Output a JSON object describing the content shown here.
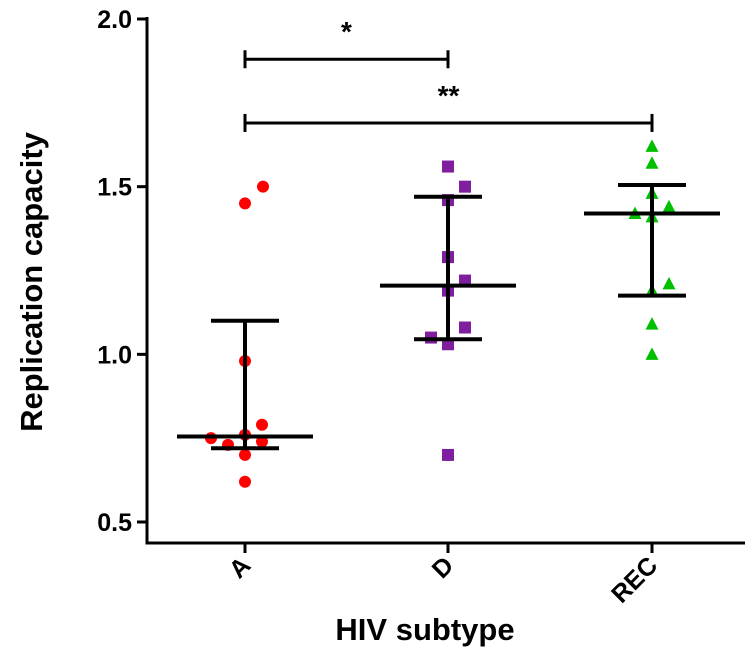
{
  "chart_data": {
    "type": "scatter",
    "xlabel": "HIV subtype",
    "ylabel": "Replication capacity",
    "ylim": [
      0.5,
      2.0
    ],
    "yticks": [
      "0.5",
      "1.0",
      "1.5",
      "2.0"
    ],
    "categories": [
      "A",
      "D",
      "REC"
    ],
    "grid": false,
    "series": [
      {
        "category": "A",
        "marker": "circle",
        "color": "#ff0000",
        "values": [
          1.5,
          1.45,
          0.98,
          0.79,
          0.76,
          0.75,
          0.74,
          0.73,
          0.7,
          0.62
        ],
        "median": 0.755,
        "q1": 0.72,
        "q3": 1.1
      },
      {
        "category": "D",
        "marker": "square",
        "color": "#7f1f9f",
        "values": [
          1.56,
          1.5,
          1.46,
          1.29,
          1.22,
          1.19,
          1.08,
          1.05,
          1.03,
          0.7
        ],
        "median": 1.205,
        "q1": 1.045,
        "q3": 1.47
      },
      {
        "category": "REC",
        "marker": "triangle",
        "color": "#00c000",
        "values": [
          1.62,
          1.57,
          1.48,
          1.44,
          1.42,
          1.41,
          1.21,
          1.19,
          1.09,
          1.0
        ],
        "median": 1.42,
        "q1": 1.175,
        "q3": 1.505
      }
    ],
    "annotations": [
      {
        "from": "A",
        "to": "D",
        "y": 1.88,
        "label": "*"
      },
      {
        "from": "A",
        "to": "REC",
        "y": 1.69,
        "label": "**"
      }
    ]
  }
}
